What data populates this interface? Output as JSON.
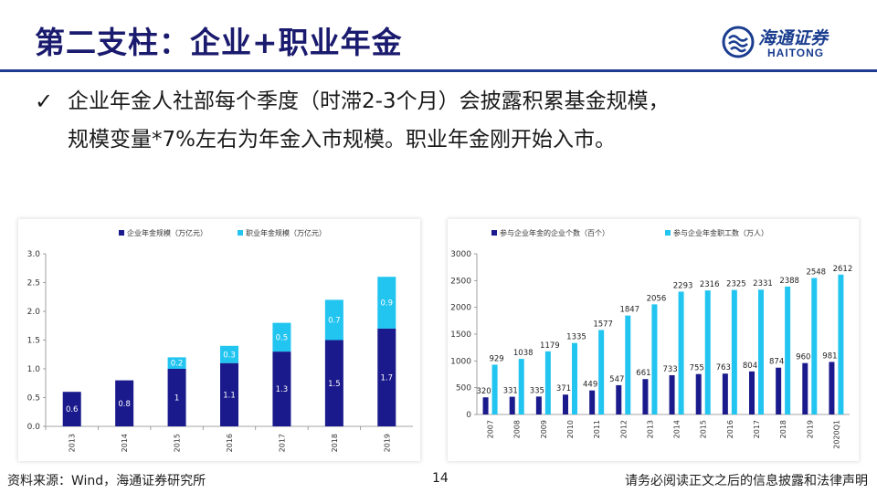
{
  "header": {
    "title": "第二支柱：企业+职业年金",
    "logo_cn": "海通证券",
    "logo_en": "HAITONG"
  },
  "bullet": {
    "check": "✓",
    "line1": "企业年金人社部每个季度（时滞2-3个月）会披露积累基金规模，",
    "line2": "规模变量*7%左右为年金入市规模。职业年金刚开始入市。"
  },
  "footer": {
    "source": "资料来源：Wind，海通证券研究所",
    "page": "14",
    "disclaimer": "请务必阅读正文之后的信息披露和法律声明"
  },
  "colors": {
    "dark": "#1a1a8c",
    "light": "#22c4f0",
    "title": "#1a1a6e"
  },
  "chart_data": [
    {
      "type": "bar",
      "stacked": true,
      "categories": [
        "2013",
        "2014",
        "2015",
        "2016",
        "2017",
        "2018",
        "2019"
      ],
      "series": [
        {
          "name": "企业年金规模（万亿元）",
          "values": [
            0.6,
            0.8,
            1,
            1.1,
            1.3,
            1.5,
            1.7
          ],
          "labels": [
            "0.6",
            "0.8",
            "1",
            "1.1",
            "1.3",
            "1.5",
            "1.7"
          ]
        },
        {
          "name": "职业年金规模（万亿元）",
          "values": [
            null,
            null,
            0.2,
            0.3,
            0.5,
            0.7,
            0.9
          ],
          "labels": [
            "",
            "",
            "0.2",
            "0.3",
            "0.5",
            "0.7",
            "0.9"
          ]
        }
      ],
      "yticks": [
        "0.0",
        "0.5",
        "1.0",
        "1.5",
        "2.0",
        "2.5",
        "3.0"
      ],
      "ylim": [
        0,
        3.0
      ],
      "legend": "top"
    },
    {
      "type": "bar",
      "categories": [
        "2007",
        "2008",
        "2009",
        "2010",
        "2011",
        "2012",
        "2013",
        "2014",
        "2015",
        "2016",
        "2017",
        "2018",
        "2019",
        "2020Q1"
      ],
      "series": [
        {
          "name": "参与企业年金的企业个数（百个）",
          "values": [
            320,
            331,
            335,
            371,
            449,
            547,
            661,
            733,
            755,
            763,
            804,
            874,
            960,
            981
          ]
        },
        {
          "name": "参与企业年金职工数（万人）",
          "values": [
            929,
            1038,
            1179,
            1335,
            1577,
            1847,
            2056,
            2293,
            2316,
            2325,
            2331,
            2388,
            2548,
            2612
          ]
        }
      ],
      "yticks": [
        "0",
        "500",
        "1000",
        "1500",
        "2000",
        "2500",
        "3000"
      ],
      "ylim": [
        0,
        3000
      ],
      "legend": "top"
    }
  ]
}
